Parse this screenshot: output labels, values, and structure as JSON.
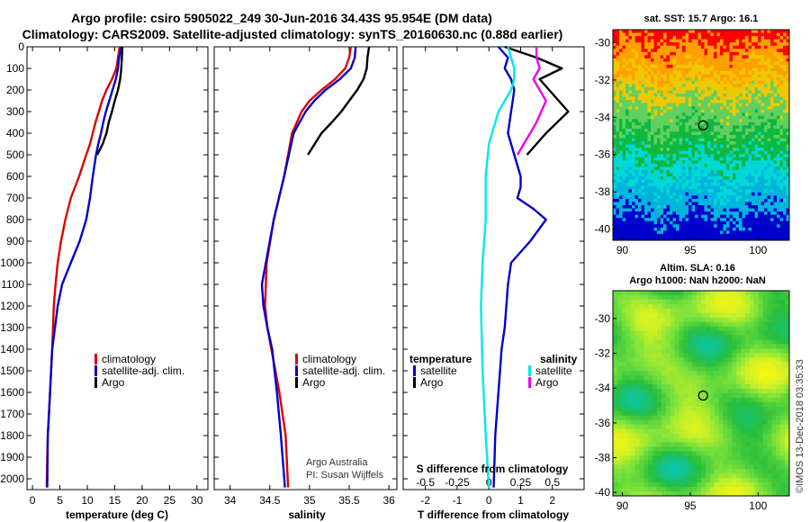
{
  "title_line1": "Argo profile: csiro 5905022_249 30-Jun-2016 34.43S 95.954E (DM data)",
  "title_line2": "Climatology: CARS2009. Satellite-adjusted climatology: synTS_20160630.nc (0.88d earlier)",
  "credit": "Argo Australia",
  "pi": "PI: Susan Wijffels",
  "stamp": "©IMOS 13-Dec-2018 03:35:33",
  "colors": {
    "climatology": "#dd0000",
    "satellite": "#0000cc",
    "argo": "#000000",
    "cyan": "#00e8e8",
    "magenta": "#ee00ee"
  },
  "chart_data": [
    {
      "type": "line",
      "name": "temperature",
      "xlabel": "temperature (deg C)",
      "xlim": [
        -1,
        32
      ],
      "ylim": [
        2050,
        0
      ],
      "xticks": [
        0,
        5,
        10,
        15,
        20,
        25,
        30
      ],
      "yticks": [
        0,
        100,
        200,
        300,
        400,
        500,
        600,
        700,
        800,
        900,
        1000,
        1100,
        1200,
        1300,
        1400,
        1500,
        1600,
        1700,
        1800,
        1900,
        2000
      ],
      "legend": [
        "climatology",
        "satellite-adj. clim.",
        "Argo"
      ],
      "series": [
        {
          "name": "climatology",
          "color": "#dd0000",
          "x": [
            15.9,
            15.6,
            15.3,
            14.5,
            13.5,
            12.7,
            12.1,
            11.5,
            11.0,
            10.5,
            9.8,
            8.5,
            7.0,
            6.0,
            5.2,
            4.6,
            4.2,
            3.9,
            3.6,
            3.4,
            3.2,
            3.0,
            2.8,
            2.7,
            2.6
          ],
          "depth": [
            0,
            50,
            100,
            150,
            200,
            250,
            300,
            350,
            400,
            450,
            500,
            600,
            700,
            800,
            900,
            1000,
            1100,
            1200,
            1400,
            1500,
            1600,
            1700,
            1800,
            1900,
            2040
          ]
        },
        {
          "name": "satellite-adj. clim.",
          "color": "#0000cc",
          "x": [
            16.2,
            15.8,
            15.6,
            15.2,
            14.6,
            14.0,
            13.4,
            12.9,
            12.5,
            12.0,
            11.6,
            11.0,
            10.5,
            9.8,
            8.6,
            7.0,
            5.4,
            4.6,
            4.1,
            3.6,
            3.4,
            3.2,
            3.0,
            2.8,
            2.7
          ],
          "depth": [
            0,
            50,
            100,
            150,
            200,
            250,
            300,
            350,
            400,
            450,
            500,
            600,
            700,
            800,
            900,
            1000,
            1100,
            1200,
            1300,
            1400,
            1500,
            1600,
            1700,
            1800,
            2040
          ]
        },
        {
          "name": "Argo",
          "color": "#000000",
          "x": [
            16.4,
            16.3,
            16.2,
            16.0,
            15.6,
            15.0,
            14.5,
            13.9,
            13.5,
            12.8,
            12.2,
            11.8
          ],
          "depth": [
            0,
            50,
            100,
            150,
            200,
            250,
            300,
            350,
            400,
            450,
            480,
            500
          ]
        }
      ]
    },
    {
      "type": "line",
      "name": "salinity",
      "xlabel": "salinity",
      "xlim": [
        33.8,
        36.1
      ],
      "ylim": [
        2050,
        0
      ],
      "xticks": [
        34,
        34.5,
        35,
        35.5,
        36
      ],
      "legend": [
        "climatology",
        "satellite-adj. clim.",
        "Argo"
      ],
      "series": [
        {
          "name": "climatology",
          "color": "#dd0000",
          "x": [
            35.52,
            35.5,
            35.45,
            35.32,
            35.15,
            35.0,
            34.9,
            34.78,
            34.68,
            34.55,
            34.46,
            34.44,
            34.47,
            34.52,
            34.57,
            34.62,
            34.66,
            34.7,
            34.73
          ],
          "depth": [
            0,
            50,
            100,
            150,
            200,
            250,
            300,
            400,
            600,
            800,
            1000,
            1200,
            1300,
            1400,
            1500,
            1600,
            1700,
            1800,
            2040
          ]
        },
        {
          "name": "satellite-adj. clim.",
          "color": "#0000cc",
          "x": [
            35.58,
            35.57,
            35.52,
            35.38,
            35.2,
            35.06,
            34.95,
            34.8,
            34.68,
            34.55,
            34.45,
            34.4,
            34.42,
            34.47,
            34.53,
            34.59,
            34.64,
            34.69
          ],
          "depth": [
            0,
            50,
            100,
            150,
            200,
            250,
            300,
            400,
            600,
            800,
            1000,
            1100,
            1200,
            1300,
            1400,
            1600,
            1800,
            2040
          ]
        },
        {
          "name": "Argo",
          "color": "#000000",
          "x": [
            35.75,
            35.73,
            35.72,
            35.68,
            35.6,
            35.5,
            35.4,
            35.28,
            35.15,
            34.98
          ],
          "depth": [
            0,
            50,
            100,
            150,
            200,
            250,
            300,
            350,
            400,
            500
          ]
        }
      ]
    },
    {
      "type": "line",
      "name": "difference from climatology",
      "xlabel": "T difference from climatology",
      "xlabel_top": "S difference from climatology",
      "xlim": [
        -2.7,
        3.0
      ],
      "ylim": [
        2050,
        0
      ],
      "xticks": [
        -2,
        -1,
        0,
        1,
        2
      ],
      "xticks_top_labels": [
        "-0.5",
        "-0.25",
        "0",
        "0.25",
        "0.5"
      ],
      "legend_temperature": {
        "heading": "temperature",
        "items": [
          "satellite",
          "Argo"
        ]
      },
      "legend_salinity": {
        "heading": "salinity",
        "items": [
          "satellite",
          "Argo"
        ]
      },
      "series": [
        {
          "name": "temperature satellite",
          "color": "#0000cc",
          "x": [
            0.3,
            0.6,
            0.5,
            0.7,
            0.8,
            0.7,
            0.6,
            0.8,
            1.0,
            1.0,
            0.9,
            1.4,
            1.8,
            1.3,
            0.7,
            0.6,
            0.55,
            0.5,
            0.4,
            0.35,
            0.3,
            0.25,
            0.2,
            0.15
          ],
          "depth": [
            0,
            50,
            100,
            150,
            200,
            300,
            400,
            500,
            600,
            650,
            700,
            750,
            800,
            900,
            1000,
            1100,
            1200,
            1300,
            1400,
            1500,
            1600,
            1700,
            1800,
            2040
          ]
        },
        {
          "name": "temperature Argo",
          "color": "#000000",
          "x": [
            0.5,
            1.5,
            2.3,
            1.6,
            2.5,
            1.8,
            1.5,
            1.2
          ],
          "depth": [
            0,
            50,
            100,
            150,
            300,
            400,
            450,
            500
          ]
        },
        {
          "name": "salinity satellite",
          "color": "#00e8e8",
          "x": [
            0.6,
            0.8,
            0.8,
            0.7,
            0.3,
            0.0,
            -0.1,
            -0.1,
            -0.2,
            -0.25,
            -0.2,
            -0.1,
            0.0
          ],
          "depth": [
            0,
            100,
            150,
            200,
            300,
            450,
            600,
            800,
            1000,
            1200,
            1500,
            1800,
            2040
          ]
        },
        {
          "name": "salinity Argo",
          "color": "#ee00ee",
          "x": [
            1.5,
            1.5,
            1.6,
            1.4,
            1.8,
            1.5,
            1.3,
            0.9
          ],
          "depth": [
            0,
            50,
            100,
            150,
            250,
            350,
            400,
            500
          ]
        }
      ]
    },
    {
      "type": "heatmap",
      "name": "sst map",
      "title": "sat. SST: 15.7 Argo: 16.1",
      "xticks": [
        90,
        95,
        100
      ],
      "yticks": [
        -30,
        -32,
        -34,
        -36,
        -38,
        -40
      ],
      "marker": {
        "lon": 95.95,
        "lat": -34.43
      }
    },
    {
      "type": "heatmap",
      "name": "sla map",
      "title_line1": "Altim. SLA: 0.16",
      "title_line2": "Argo h1000: NaN h2000: NaN",
      "xticks": [
        90,
        95,
        100
      ],
      "yticks": [
        -30,
        -32,
        -34,
        -36,
        -38,
        -40
      ],
      "marker": {
        "lon": 95.95,
        "lat": -34.43
      }
    }
  ]
}
